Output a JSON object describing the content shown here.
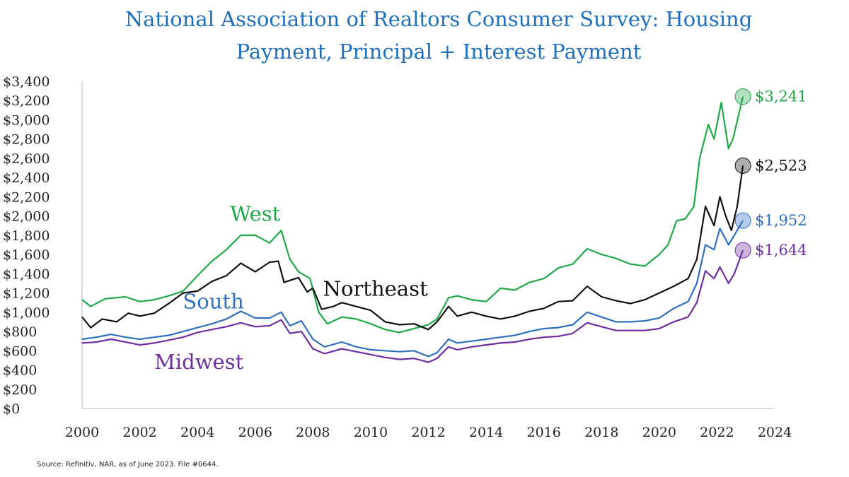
{
  "title_lines": [
    "National Association of Realtors Consumer Survey: Housing",
    "Payment, Principal + Interest Payment"
  ],
  "source": "Source: Refinitiv, NAR, as of June 2023. File #0644.",
  "chart_data": {
    "type": "line",
    "title": "National Association of Realtors Consumer Survey: Housing Payment, Principal + Interest Payment",
    "xlim": [
      2000,
      2024
    ],
    "ylim": [
      0,
      3400
    ],
    "x_ticks": [
      2000,
      2002,
      2004,
      2006,
      2008,
      2010,
      2012,
      2014,
      2016,
      2018,
      2020,
      2022,
      2024
    ],
    "x_tick_labels": [
      "2000",
      "2002",
      "2004",
      "2006",
      "2008",
      "2010",
      "2012",
      "2014",
      "2016",
      "2018",
      "2020",
      "2022",
      "2024"
    ],
    "y_ticks": [
      0,
      200,
      400,
      600,
      800,
      1000,
      1200,
      1400,
      1600,
      1800,
      2000,
      2200,
      2400,
      2600,
      2800,
      3000,
      3200,
      3400
    ],
    "y_tick_labels": [
      "$0",
      "$200",
      "$400",
      "$600",
      "$800",
      "$1,000",
      "$1,200",
      "$1,400",
      "$1,600",
      "$1,800",
      "$2,000",
      "$2,200",
      "$2,400",
      "$2,600",
      "$2,800",
      "$3,000",
      "$3,200",
      "$3,400"
    ],
    "grid": false,
    "series": [
      {
        "name": "West",
        "color": "#20a848",
        "end_label": "$3,241",
        "end_value": 3241,
        "points": [
          [
            2000,
            1130
          ],
          [
            2000.3,
            1060
          ],
          [
            2000.8,
            1140
          ],
          [
            2001.5,
            1160
          ],
          [
            2002,
            1110
          ],
          [
            2002.5,
            1130
          ],
          [
            2003,
            1170
          ],
          [
            2003.5,
            1220
          ],
          [
            2004,
            1380
          ],
          [
            2004.5,
            1530
          ],
          [
            2005,
            1650
          ],
          [
            2005.5,
            1800
          ],
          [
            2006,
            1800
          ],
          [
            2006.5,
            1720
          ],
          [
            2006.9,
            1850
          ],
          [
            2007.2,
            1550
          ],
          [
            2007.5,
            1420
          ],
          [
            2007.9,
            1350
          ],
          [
            2008.2,
            1000
          ],
          [
            2008.5,
            880
          ],
          [
            2009,
            950
          ],
          [
            2009.5,
            930
          ],
          [
            2010,
            880
          ],
          [
            2010.5,
            820
          ],
          [
            2011,
            790
          ],
          [
            2011.5,
            830
          ],
          [
            2012,
            870
          ],
          [
            2012.3,
            930
          ],
          [
            2012.7,
            1150
          ],
          [
            2013,
            1170
          ],
          [
            2013.5,
            1130
          ],
          [
            2014,
            1110
          ],
          [
            2014.5,
            1250
          ],
          [
            2015,
            1230
          ],
          [
            2015.5,
            1310
          ],
          [
            2016,
            1350
          ],
          [
            2016.5,
            1460
          ],
          [
            2017,
            1500
          ],
          [
            2017.5,
            1660
          ],
          [
            2018,
            1600
          ],
          [
            2018.5,
            1560
          ],
          [
            2019,
            1500
          ],
          [
            2019.5,
            1480
          ],
          [
            2020,
            1600
          ],
          [
            2020.3,
            1700
          ],
          [
            2020.6,
            1950
          ],
          [
            2020.9,
            1970
          ],
          [
            2021.2,
            2100
          ],
          [
            2021.4,
            2600
          ],
          [
            2021.7,
            2950
          ],
          [
            2021.9,
            2800
          ],
          [
            2022.15,
            3180
          ],
          [
            2022.4,
            2700
          ],
          [
            2022.55,
            2800
          ],
          [
            2022.75,
            3050
          ],
          [
            2022.9,
            3241
          ]
        ]
      },
      {
        "name": "Northeast",
        "color": "#111111",
        "end_label": "$2,523",
        "end_value": 2523,
        "points": [
          [
            2000,
            950
          ],
          [
            2000.3,
            840
          ],
          [
            2000.7,
            930
          ],
          [
            2001.2,
            900
          ],
          [
            2001.6,
            990
          ],
          [
            2002,
            960
          ],
          [
            2002.5,
            990
          ],
          [
            2003,
            1090
          ],
          [
            2003.5,
            1200
          ],
          [
            2004,
            1220
          ],
          [
            2004.5,
            1320
          ],
          [
            2005,
            1380
          ],
          [
            2005.5,
            1510
          ],
          [
            2006,
            1420
          ],
          [
            2006.5,
            1520
          ],
          [
            2006.8,
            1530
          ],
          [
            2007,
            1310
          ],
          [
            2007.5,
            1360
          ],
          [
            2007.8,
            1210
          ],
          [
            2008,
            1250
          ],
          [
            2008.3,
            1030
          ],
          [
            2008.7,
            1060
          ],
          [
            2009,
            1100
          ],
          [
            2009.5,
            1060
          ],
          [
            2010,
            1020
          ],
          [
            2010.5,
            900
          ],
          [
            2011,
            870
          ],
          [
            2011.5,
            880
          ],
          [
            2012,
            820
          ],
          [
            2012.3,
            900
          ],
          [
            2012.7,
            1060
          ],
          [
            2013,
            960
          ],
          [
            2013.5,
            1000
          ],
          [
            2014,
            960
          ],
          [
            2014.5,
            930
          ],
          [
            2015,
            960
          ],
          [
            2015.5,
            1010
          ],
          [
            2016,
            1040
          ],
          [
            2016.5,
            1110
          ],
          [
            2017,
            1120
          ],
          [
            2017.5,
            1270
          ],
          [
            2018,
            1160
          ],
          [
            2018.5,
            1120
          ],
          [
            2019,
            1090
          ],
          [
            2019.5,
            1130
          ],
          [
            2020,
            1200
          ],
          [
            2020.5,
            1270
          ],
          [
            2021,
            1350
          ],
          [
            2021.3,
            1550
          ],
          [
            2021.6,
            2100
          ],
          [
            2021.9,
            1900
          ],
          [
            2022.1,
            2200
          ],
          [
            2022.3,
            2000
          ],
          [
            2022.5,
            1850
          ],
          [
            2022.7,
            2100
          ],
          [
            2022.9,
            2523
          ]
        ]
      },
      {
        "name": "South",
        "color": "#2e6fc0",
        "end_label": "$1,952",
        "end_value": 1952,
        "points": [
          [
            2000,
            720
          ],
          [
            2000.5,
            740
          ],
          [
            2001,
            770
          ],
          [
            2001.5,
            740
          ],
          [
            2002,
            720
          ],
          [
            2002.5,
            740
          ],
          [
            2003,
            760
          ],
          [
            2003.5,
            800
          ],
          [
            2004,
            840
          ],
          [
            2004.5,
            880
          ],
          [
            2005,
            930
          ],
          [
            2005.5,
            1010
          ],
          [
            2006,
            940
          ],
          [
            2006.5,
            940
          ],
          [
            2006.9,
            1000
          ],
          [
            2007.2,
            860
          ],
          [
            2007.6,
            910
          ],
          [
            2008,
            720
          ],
          [
            2008.4,
            640
          ],
          [
            2009,
            690
          ],
          [
            2009.5,
            640
          ],
          [
            2010,
            610
          ],
          [
            2010.5,
            600
          ],
          [
            2011,
            590
          ],
          [
            2011.5,
            600
          ],
          [
            2012,
            540
          ],
          [
            2012.3,
            580
          ],
          [
            2012.7,
            720
          ],
          [
            2013,
            680
          ],
          [
            2013.5,
            700
          ],
          [
            2014,
            720
          ],
          [
            2014.5,
            740
          ],
          [
            2015,
            760
          ],
          [
            2015.5,
            800
          ],
          [
            2016,
            830
          ],
          [
            2016.5,
            840
          ],
          [
            2017,
            870
          ],
          [
            2017.5,
            1000
          ],
          [
            2018,
            950
          ],
          [
            2018.5,
            900
          ],
          [
            2019,
            900
          ],
          [
            2019.5,
            910
          ],
          [
            2020,
            940
          ],
          [
            2020.5,
            1040
          ],
          [
            2021,
            1110
          ],
          [
            2021.3,
            1300
          ],
          [
            2021.6,
            1700
          ],
          [
            2021.9,
            1650
          ],
          [
            2022.1,
            1870
          ],
          [
            2022.4,
            1700
          ],
          [
            2022.6,
            1800
          ],
          [
            2022.9,
            1952
          ]
        ]
      },
      {
        "name": "Midwest",
        "color": "#6e2ea0",
        "end_label": "$1,644",
        "end_value": 1644,
        "points": [
          [
            2000,
            680
          ],
          [
            2000.5,
            690
          ],
          [
            2001,
            720
          ],
          [
            2001.5,
            690
          ],
          [
            2002,
            660
          ],
          [
            2002.5,
            680
          ],
          [
            2003,
            710
          ],
          [
            2003.5,
            740
          ],
          [
            2004,
            790
          ],
          [
            2004.5,
            820
          ],
          [
            2005,
            850
          ],
          [
            2005.5,
            890
          ],
          [
            2006,
            850
          ],
          [
            2006.5,
            860
          ],
          [
            2006.9,
            920
          ],
          [
            2007.2,
            780
          ],
          [
            2007.6,
            800
          ],
          [
            2008,
            620
          ],
          [
            2008.4,
            570
          ],
          [
            2009,
            620
          ],
          [
            2009.5,
            590
          ],
          [
            2010,
            560
          ],
          [
            2010.5,
            530
          ],
          [
            2011,
            510
          ],
          [
            2011.5,
            520
          ],
          [
            2012,
            480
          ],
          [
            2012.3,
            520
          ],
          [
            2012.7,
            640
          ],
          [
            2013,
            610
          ],
          [
            2013.5,
            640
          ],
          [
            2014,
            660
          ],
          [
            2014.5,
            680
          ],
          [
            2015,
            690
          ],
          [
            2015.5,
            720
          ],
          [
            2016,
            740
          ],
          [
            2016.5,
            750
          ],
          [
            2017,
            780
          ],
          [
            2017.5,
            890
          ],
          [
            2018,
            850
          ],
          [
            2018.5,
            810
          ],
          [
            2019,
            810
          ],
          [
            2019.5,
            810
          ],
          [
            2020,
            830
          ],
          [
            2020.5,
            900
          ],
          [
            2021,
            950
          ],
          [
            2021.3,
            1100
          ],
          [
            2021.6,
            1430
          ],
          [
            2021.9,
            1350
          ],
          [
            2022.1,
            1470
          ],
          [
            2022.4,
            1300
          ],
          [
            2022.6,
            1400
          ],
          [
            2022.9,
            1644
          ]
        ]
      }
    ],
    "series_labels": [
      {
        "name": "West",
        "text": "West",
        "color": "#20a848",
        "at": [
          2006.0,
          1950
        ]
      },
      {
        "name": "Northeast",
        "text": "Northeast",
        "color": "#111111",
        "at": [
          2008.35,
          1170
        ]
      },
      {
        "name": "South",
        "text": "South",
        "color": "#2e6fc0",
        "at": [
          2004.55,
          1040
        ]
      },
      {
        "name": "Midwest",
        "text": "Midwest",
        "color": "#6e2ea0",
        "at": [
          2004.05,
          410
        ]
      }
    ]
  }
}
